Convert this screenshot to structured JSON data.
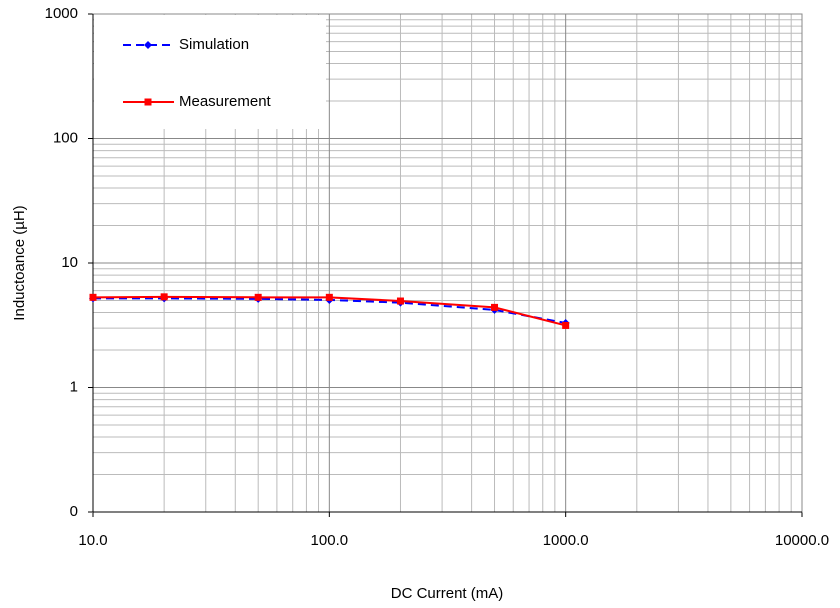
{
  "chart_data": {
    "type": "line",
    "x_label": "DC Current (mA)",
    "y_label": "Inductoance (µH)",
    "x": [
      10,
      20,
      50,
      100,
      200,
      500,
      1000
    ],
    "series": [
      {
        "name": "Simulation",
        "color": "#0000ff",
        "dashed": true,
        "marker": "diamond",
        "values": [
          5.2,
          5.2,
          5.15,
          5.05,
          4.8,
          4.2,
          3.3
        ]
      },
      {
        "name": "Measurement",
        "color": "#ff0000",
        "dashed": false,
        "marker": "square",
        "values": [
          5.3,
          5.35,
          5.3,
          5.3,
          4.95,
          4.4,
          3.15
        ]
      }
    ],
    "xlim": [
      10,
      10000
    ],
    "ylim": [
      0.1,
      1000
    ],
    "xticks": [
      {
        "value": 10,
        "label": "10.0"
      },
      {
        "value": 100,
        "label": "100.0"
      },
      {
        "value": 1000,
        "label": "1000.0"
      },
      {
        "value": 10000,
        "label": "10000.0"
      }
    ],
    "yticks": [
      {
        "value": 0.1,
        "label": "0"
      },
      1,
      10,
      100,
      1000
    ],
    "xlog": true,
    "ylog": true,
    "grid": true,
    "legend": "upper-left"
  }
}
